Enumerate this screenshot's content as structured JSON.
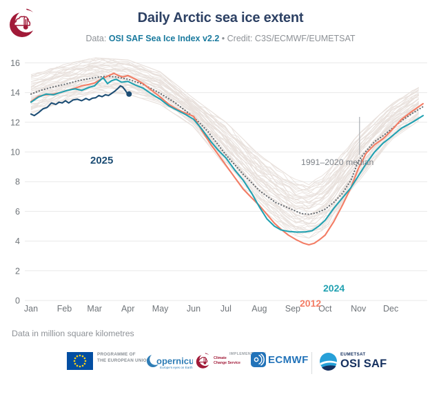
{
  "header": {
    "title": "Daily Arctic sea ice extent",
    "subtitle_prefix": "Data: ",
    "subtitle_link": "OSI SAF Sea Ice Index v2.2",
    "subtitle_suffix": " • Credit: C3S/ECMWF/EUMETSAT"
  },
  "theme": {
    "title_color": "#2d4164",
    "link_blue": "#1a7a9e",
    "grid_gray": "#e8e8e8",
    "tick_gray": "#6f7479",
    "navy_2025": "#1c4d74",
    "teal_2024": "#21a1b1",
    "salmon_2012": "#f37d65",
    "median_gray": "#62686e",
    "background_line": "#e8e0db",
    "eu_blue": "#034ea2",
    "eu_star_yellow": "#ffd617",
    "copernicus_blue": "#2e7db6",
    "c3s_red": "#a11a38",
    "ecmwf_blue": "#2273b9",
    "osisaf_navy": "#15305f",
    "osisaf_blue": "#27a0d8"
  },
  "chart_data": {
    "type": "line",
    "title": "Daily Arctic sea ice extent",
    "ylabel_note": "Data in million square kilometres",
    "grid": "horizontal",
    "y_axis": {
      "ticks": [
        0,
        2,
        4,
        6,
        8,
        10,
        12,
        14,
        16
      ],
      "range": [
        0,
        16.5
      ]
    },
    "x_axis": {
      "months": [
        "Jan",
        "Feb",
        "Mar",
        "Apr",
        "May",
        "Jun",
        "Jul",
        "Aug",
        "Sep",
        "Oct",
        "Nov",
        "Dec"
      ],
      "month_start_doy": [
        1,
        32,
        60,
        91,
        121,
        152,
        182,
        213,
        244,
        274,
        305,
        335
      ],
      "doy_range": [
        1,
        365
      ]
    },
    "annotation": {
      "label": "1991–2020 median",
      "pointer_doy": 306,
      "pointer_value": 9.7
    },
    "series": [
      {
        "name": "1991–2020 median",
        "style": "dotted",
        "color": "#62686e",
        "end_dot": false,
        "points": [
          [
            1,
            13.9
          ],
          [
            10,
            14.15
          ],
          [
            20,
            14.35
          ],
          [
            32,
            14.55
          ],
          [
            45,
            14.8
          ],
          [
            60,
            15.0
          ],
          [
            70,
            15.1
          ],
          [
            80,
            15.05
          ],
          [
            91,
            14.9
          ],
          [
            105,
            14.55
          ],
          [
            121,
            13.95
          ],
          [
            135,
            13.3
          ],
          [
            152,
            12.35
          ],
          [
            165,
            11.4
          ],
          [
            182,
            9.8
          ],
          [
            198,
            8.5
          ],
          [
            213,
            7.4
          ],
          [
            228,
            6.6
          ],
          [
            244,
            6.1
          ],
          [
            252,
            5.85
          ],
          [
            259,
            5.8
          ],
          [
            266,
            5.9
          ],
          [
            274,
            6.15
          ],
          [
            282,
            6.6
          ],
          [
            290,
            7.2
          ],
          [
            298,
            8.1
          ],
          [
            305,
            9.4
          ],
          [
            312,
            10.05
          ],
          [
            320,
            10.7
          ],
          [
            328,
            11.1
          ],
          [
            335,
            11.5
          ],
          [
            345,
            12.1
          ],
          [
            355,
            12.6
          ],
          [
            365,
            13.05
          ]
        ]
      },
      {
        "name": "2012",
        "style": "solid",
        "color": "#f37d65",
        "end_dot": false,
        "points": [
          [
            1,
            13.4
          ],
          [
            8,
            13.75
          ],
          [
            15,
            13.85
          ],
          [
            22,
            13.9
          ],
          [
            28,
            14.0
          ],
          [
            35,
            14.15
          ],
          [
            42,
            14.3
          ],
          [
            48,
            14.45
          ],
          [
            55,
            14.55
          ],
          [
            60,
            14.65
          ],
          [
            66,
            14.9
          ],
          [
            72,
            15.1
          ],
          [
            78,
            15.3
          ],
          [
            82,
            15.15
          ],
          [
            86,
            15.05
          ],
          [
            91,
            15.15
          ],
          [
            98,
            14.9
          ],
          [
            105,
            14.6
          ],
          [
            113,
            14.15
          ],
          [
            121,
            13.7
          ],
          [
            129,
            13.2
          ],
          [
            137,
            12.85
          ],
          [
            145,
            12.6
          ],
          [
            152,
            12.4
          ],
          [
            160,
            11.4
          ],
          [
            168,
            10.5
          ],
          [
            175,
            9.8
          ],
          [
            182,
            9.1
          ],
          [
            190,
            8.3
          ],
          [
            198,
            7.5
          ],
          [
            206,
            6.9
          ],
          [
            213,
            6.4
          ],
          [
            220,
            5.8
          ],
          [
            227,
            5.2
          ],
          [
            233,
            4.8
          ],
          [
            240,
            4.4
          ],
          [
            247,
            4.1
          ],
          [
            254,
            3.85
          ],
          [
            259,
            3.75
          ],
          [
            264,
            3.85
          ],
          [
            269,
            4.1
          ],
          [
            274,
            4.4
          ],
          [
            282,
            5.3
          ],
          [
            290,
            6.4
          ],
          [
            298,
            7.6
          ],
          [
            305,
            8.9
          ],
          [
            312,
            9.9
          ],
          [
            320,
            10.5
          ],
          [
            328,
            10.9
          ],
          [
            335,
            11.4
          ],
          [
            345,
            12.2
          ],
          [
            355,
            12.75
          ],
          [
            365,
            13.25
          ]
        ]
      },
      {
        "name": "2024",
        "style": "solid",
        "color": "#21a1b1",
        "end_dot": false,
        "points": [
          [
            1,
            13.35
          ],
          [
            8,
            13.7
          ],
          [
            15,
            13.9
          ],
          [
            22,
            13.85
          ],
          [
            28,
            14.0
          ],
          [
            35,
            14.15
          ],
          [
            42,
            14.25
          ],
          [
            48,
            14.15
          ],
          [
            55,
            14.35
          ],
          [
            60,
            14.45
          ],
          [
            64,
            14.75
          ],
          [
            68,
            15.0
          ],
          [
            72,
            14.6
          ],
          [
            76,
            14.8
          ],
          [
            80,
            14.9
          ],
          [
            85,
            14.7
          ],
          [
            91,
            14.75
          ],
          [
            98,
            14.5
          ],
          [
            105,
            14.3
          ],
          [
            113,
            13.9
          ],
          [
            121,
            13.55
          ],
          [
            129,
            13.1
          ],
          [
            137,
            12.8
          ],
          [
            145,
            12.5
          ],
          [
            152,
            12.2
          ],
          [
            160,
            11.5
          ],
          [
            168,
            10.7
          ],
          [
            175,
            10.1
          ],
          [
            182,
            9.6
          ],
          [
            190,
            8.8
          ],
          [
            198,
            8.1
          ],
          [
            206,
            7.2
          ],
          [
            213,
            6.3
          ],
          [
            220,
            5.5
          ],
          [
            227,
            5.0
          ],
          [
            233,
            4.75
          ],
          [
            240,
            4.65
          ],
          [
            248,
            4.6
          ],
          [
            256,
            4.62
          ],
          [
            262,
            4.7
          ],
          [
            268,
            5.0
          ],
          [
            274,
            5.4
          ],
          [
            282,
            6.2
          ],
          [
            290,
            6.9
          ],
          [
            298,
            7.6
          ],
          [
            305,
            8.4
          ],
          [
            312,
            9.2
          ],
          [
            320,
            10.0
          ],
          [
            328,
            10.6
          ],
          [
            335,
            11.0
          ],
          [
            345,
            11.6
          ],
          [
            355,
            12.0
          ],
          [
            365,
            12.45
          ]
        ]
      },
      {
        "name": "2025",
        "style": "solid",
        "color": "#1c4d74",
        "end_dot": true,
        "points": [
          [
            1,
            12.55
          ],
          [
            4,
            12.45
          ],
          [
            8,
            12.65
          ],
          [
            12,
            12.9
          ],
          [
            16,
            13.0
          ],
          [
            20,
            13.3
          ],
          [
            24,
            13.2
          ],
          [
            27,
            13.35
          ],
          [
            30,
            13.3
          ],
          [
            33,
            13.45
          ],
          [
            36,
            13.3
          ],
          [
            40,
            13.5
          ],
          [
            44,
            13.55
          ],
          [
            48,
            13.45
          ],
          [
            52,
            13.6
          ],
          [
            55,
            13.5
          ],
          [
            58,
            13.62
          ],
          [
            61,
            13.65
          ],
          [
            64,
            13.8
          ],
          [
            67,
            13.72
          ],
          [
            70,
            13.85
          ],
          [
            73,
            13.8
          ],
          [
            76,
            13.95
          ],
          [
            79,
            14.1
          ],
          [
            82,
            14.3
          ],
          [
            84,
            14.45
          ],
          [
            86,
            14.38
          ],
          [
            88,
            14.2
          ],
          [
            90,
            14.0
          ],
          [
            92,
            13.9
          ]
        ]
      }
    ],
    "background_years": {
      "description": "Individual years 1979–2023 shown as light lines",
      "count": 44,
      "color": "#e8e0db",
      "envelope": {
        "doy": [
          1,
          32,
          60,
          91,
          121,
          152,
          182,
          213,
          244,
          259,
          274,
          305,
          335,
          365
        ],
        "min": [
          12.6,
          13.4,
          14.0,
          13.9,
          13.2,
          11.7,
          9.0,
          6.3,
          4.4,
          4.2,
          4.6,
          8.0,
          10.8,
          12.3
        ],
        "max": [
          15.2,
          15.9,
          16.35,
          16.2,
          15.4,
          13.6,
          12.0,
          9.8,
          8.2,
          7.9,
          8.5,
          11.2,
          13.2,
          14.6
        ]
      }
    }
  },
  "footer": {
    "note": "Data in million square kilometres",
    "logos": {
      "eu_line1": "PROGRAMME OF",
      "eu_line2": "THE EUROPEAN UNION",
      "copernicus_text": "opernicus",
      "copernicus_tagline": "Europe's eyes on Earth",
      "c3s_line1": "Climate",
      "c3s_line2": "Change Service",
      "implemented_by": "IMPLEMENTED BY",
      "ecmwf_text": "ECMWF",
      "eumetsat_text": "EUMETSAT",
      "osisaf_text": "OSI SAF"
    }
  }
}
